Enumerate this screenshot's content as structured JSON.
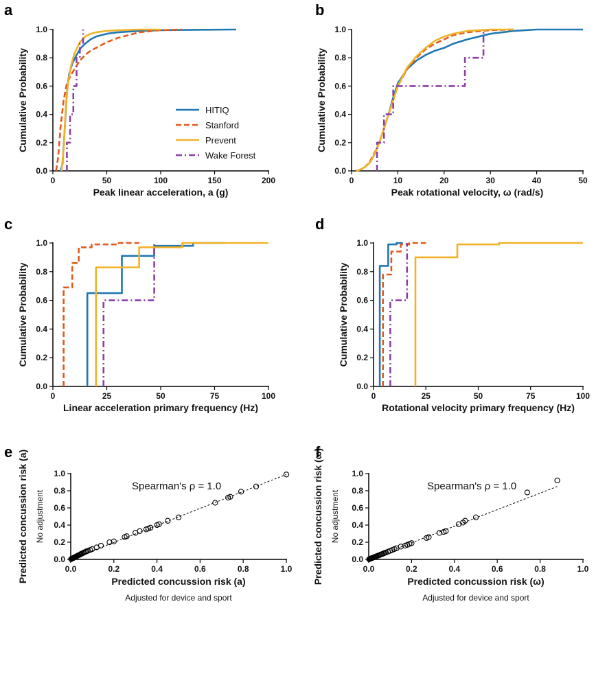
{
  "colors": {
    "HITIQ": "#1f77b4",
    "Stanford": "#e05a1c",
    "Prevent": "#f2b227",
    "Wake Forest": "#8b3fa6",
    "axis": "#000000",
    "marker": "#000000"
  },
  "legend": {
    "position": "center-right of panel a",
    "entries": [
      "HITIQ",
      "Stanford",
      "Prevent",
      "Wake Forest"
    ]
  },
  "chart_data": [
    {
      "panel": "a",
      "type": "line",
      "xlabel": "Peak linear acceleration, a (g)",
      "ylabel": "Cumulative Probability",
      "xlim": [
        0,
        200
      ],
      "ylim": [
        0,
        1
      ],
      "xticks": [
        "0",
        "50",
        "100",
        "150",
        "200"
      ],
      "yticks": [
        "0.0",
        "0.2",
        "0.4",
        "0.6",
        "0.8",
        "1.0"
      ],
      "series": [
        {
          "name": "HITIQ",
          "style": "solid",
          "x": [
            7,
            9,
            11,
            13,
            15,
            18,
            22,
            26,
            30,
            35,
            40,
            50,
            60,
            80,
            100,
            130,
            170
          ],
          "y": [
            0,
            0.05,
            0.3,
            0.55,
            0.68,
            0.76,
            0.82,
            0.87,
            0.9,
            0.93,
            0.95,
            0.97,
            0.98,
            0.99,
            0.995,
            0.998,
            1.0
          ]
        },
        {
          "name": "Stanford",
          "style": "dashed",
          "x": [
            3,
            5,
            7,
            10,
            13,
            17,
            20,
            25,
            30,
            35,
            40,
            50,
            60,
            70,
            80,
            100,
            120
          ],
          "y": [
            0,
            0.1,
            0.3,
            0.5,
            0.62,
            0.68,
            0.72,
            0.78,
            0.82,
            0.85,
            0.87,
            0.91,
            0.94,
            0.96,
            0.98,
            0.995,
            1.0
          ]
        },
        {
          "name": "Prevent",
          "style": "solid",
          "x": [
            8,
            10,
            12,
            14,
            17,
            20,
            25,
            30,
            35,
            40,
            50,
            60,
            80,
            100
          ],
          "y": [
            0,
            0.15,
            0.45,
            0.62,
            0.75,
            0.83,
            0.91,
            0.95,
            0.97,
            0.98,
            0.99,
            0.995,
            1.0,
            1.0
          ]
        },
        {
          "name": "Wake Forest",
          "style": "dashdot",
          "x": [
            13,
            13,
            16,
            16,
            19,
            19,
            22,
            22,
            25,
            25,
            28,
            28
          ],
          "y": [
            0,
            0.2,
            0.2,
            0.4,
            0.4,
            0.6,
            0.6,
            0.8,
            0.8,
            0.9,
            0.9,
            1.0
          ]
        }
      ]
    },
    {
      "panel": "b",
      "type": "line",
      "xlabel": "Peak rotational velocity, ω (rad/s)",
      "ylabel": "Cumulative Probability",
      "xlim": [
        0,
        50
      ],
      "ylim": [
        0,
        1
      ],
      "xticks": [
        "0",
        "10",
        "20",
        "30",
        "40",
        "50"
      ],
      "yticks": [
        "0.0",
        "0.2",
        "0.4",
        "0.6",
        "0.8",
        "1.0"
      ],
      "series": [
        {
          "name": "HITIQ",
          "style": "solid",
          "x": [
            1,
            2,
            3,
            4,
            5,
            6,
            7,
            8,
            9,
            10,
            12,
            14,
            16,
            18,
            20,
            22,
            25,
            30,
            35,
            40,
            50
          ],
          "y": [
            0,
            0.01,
            0.03,
            0.06,
            0.12,
            0.2,
            0.3,
            0.4,
            0.52,
            0.62,
            0.72,
            0.78,
            0.82,
            0.85,
            0.87,
            0.9,
            0.93,
            0.97,
            0.99,
            1.0,
            1.0
          ]
        },
        {
          "name": "Stanford",
          "style": "dashed",
          "x": [
            1,
            2,
            3,
            4,
            5,
            6,
            7,
            8,
            9,
            10,
            12,
            14,
            16,
            18,
            20,
            22,
            25,
            30,
            35
          ],
          "y": [
            0,
            0.01,
            0.03,
            0.07,
            0.13,
            0.2,
            0.3,
            0.4,
            0.5,
            0.6,
            0.72,
            0.8,
            0.86,
            0.9,
            0.93,
            0.96,
            0.98,
            0.995,
            1.0
          ]
        },
        {
          "name": "Prevent",
          "style": "solid",
          "x": [
            1,
            2,
            3,
            4,
            5,
            6,
            7,
            8,
            9,
            10,
            12,
            14,
            16,
            18,
            20,
            22,
            25,
            30,
            35
          ],
          "y": [
            0,
            0.01,
            0.03,
            0.06,
            0.12,
            0.2,
            0.3,
            0.4,
            0.5,
            0.6,
            0.73,
            0.81,
            0.87,
            0.92,
            0.95,
            0.97,
            0.99,
            1.0,
            1.0
          ]
        },
        {
          "name": "Wake Forest",
          "style": "dashdot",
          "x": [
            5.5,
            5.5,
            7,
            7,
            9,
            9,
            24.5,
            24.5,
            28.5,
            28.5
          ],
          "y": [
            0,
            0.2,
            0.2,
            0.4,
            0.4,
            0.6,
            0.6,
            0.8,
            0.8,
            1.0
          ]
        }
      ]
    },
    {
      "panel": "c",
      "type": "line",
      "xlabel": "Linear acceleration primary frequency (Hz)",
      "ylabel": "Cumulative Probability",
      "xlim": [
        0,
        100
      ],
      "ylim": [
        0,
        1
      ],
      "xticks": [
        "0",
        "25",
        "50",
        "75",
        "100"
      ],
      "yticks": [
        "0.0",
        "0.2",
        "0.4",
        "0.6",
        "0.8",
        "1.0"
      ],
      "series": [
        {
          "name": "HITIQ",
          "style": "solid",
          "x": [
            16,
            16,
            32,
            32,
            47,
            47,
            65,
            65,
            80
          ],
          "y": [
            0,
            0.65,
            0.65,
            0.91,
            0.91,
            0.98,
            0.98,
            1.0,
            1.0
          ]
        },
        {
          "name": "Stanford",
          "style": "dashed",
          "x": [
            5,
            5,
            9,
            9,
            12,
            12,
            18,
            18,
            30,
            30,
            40
          ],
          "y": [
            0,
            0.69,
            0.69,
            0.86,
            0.86,
            0.97,
            0.97,
            0.99,
            0.99,
            1.0,
            1.0
          ]
        },
        {
          "name": "Prevent",
          "style": "solid",
          "x": [
            20,
            20,
            40,
            40,
            60,
            60,
            100
          ],
          "y": [
            0,
            0.83,
            0.83,
            0.97,
            0.97,
            1.0,
            1.0
          ]
        },
        {
          "name": "Wake Forest",
          "style": "dashdot",
          "x": [
            23.5,
            23.5,
            47,
            47
          ],
          "y": [
            0,
            0.6,
            0.6,
            1.0
          ]
        }
      ]
    },
    {
      "panel": "d",
      "type": "line",
      "xlabel": "Rotational velocity primary frequency (Hz)",
      "ylabel": "Cumulative Probability",
      "xlim": [
        0,
        100
      ],
      "ylim": [
        0,
        1
      ],
      "xticks": [
        "0",
        "25",
        "50",
        "75",
        "100"
      ],
      "yticks": [
        "0.0",
        "0.2",
        "0.4",
        "0.6",
        "0.8",
        "1.0"
      ],
      "series": [
        {
          "name": "HITIQ",
          "style": "solid",
          "x": [
            3,
            3,
            7,
            7,
            11,
            11,
            14
          ],
          "y": [
            0,
            0.84,
            0.84,
            0.99,
            0.99,
            1.0,
            1.0
          ]
        },
        {
          "name": "Stanford",
          "style": "dashed",
          "x": [
            4.5,
            4.5,
            8.5,
            8.5,
            13,
            13,
            17,
            17,
            26
          ],
          "y": [
            0,
            0.78,
            0.78,
            0.94,
            0.94,
            0.99,
            0.99,
            1.0,
            1.0
          ]
        },
        {
          "name": "Prevent",
          "style": "solid",
          "x": [
            20,
            20,
            40,
            40,
            60,
            60,
            100
          ],
          "y": [
            0,
            0.9,
            0.9,
            0.99,
            0.99,
            1.0,
            1.0
          ]
        },
        {
          "name": "Wake Forest",
          "style": "dashdot",
          "x": [
            8,
            8,
            16,
            16
          ],
          "y": [
            0,
            0.6,
            0.6,
            1.0
          ]
        }
      ]
    },
    {
      "panel": "e",
      "type": "scatter",
      "xlabel": "Predicted concussion risk (a)",
      "xsublabel": "Adjusted for device and sport",
      "ylabel": "Predicted concussion risk (a)",
      "ysublabel": "No adjustment",
      "xlim": [
        0,
        1
      ],
      "ylim": [
        0,
        1
      ],
      "xticks": [
        "0.0",
        "0.2",
        "0.4",
        "0.6",
        "0.8",
        "1.0"
      ],
      "yticks": [
        "0.0",
        "0.2",
        "0.4",
        "0.6",
        "0.8",
        "1.0"
      ],
      "annotation": "Spearman's ρ = 1.0",
      "fit_line": {
        "x": [
          0,
          1
        ],
        "y": [
          0,
          0.99
        ]
      },
      "x": [
        0.002,
        0.005,
        0.008,
        0.01,
        0.012,
        0.015,
        0.018,
        0.02,
        0.022,
        0.025,
        0.028,
        0.03,
        0.033,
        0.036,
        0.04,
        0.043,
        0.046,
        0.05,
        0.055,
        0.06,
        0.065,
        0.07,
        0.075,
        0.08,
        0.09,
        0.1,
        0.12,
        0.14,
        0.18,
        0.2,
        0.25,
        0.26,
        0.3,
        0.32,
        0.35,
        0.36,
        0.37,
        0.4,
        0.41,
        0.45,
        0.5,
        0.67,
        0.73,
        0.74,
        0.79,
        0.86,
        1.0
      ],
      "y": [
        0.003,
        0.007,
        0.011,
        0.013,
        0.016,
        0.02,
        0.024,
        0.027,
        0.03,
        0.034,
        0.037,
        0.04,
        0.044,
        0.048,
        0.053,
        0.057,
        0.061,
        0.066,
        0.072,
        0.078,
        0.084,
        0.09,
        0.096,
        0.1,
        0.11,
        0.12,
        0.14,
        0.16,
        0.2,
        0.21,
        0.26,
        0.27,
        0.31,
        0.33,
        0.35,
        0.36,
        0.37,
        0.4,
        0.41,
        0.45,
        0.49,
        0.66,
        0.72,
        0.73,
        0.79,
        0.85,
        0.99
      ]
    },
    {
      "panel": "f",
      "type": "scatter",
      "xlabel": "Predicted concussion risk (ω)",
      "xsublabel": "Adjusted for device and sport",
      "ylabel": "Predicted concussion risk (ω)",
      "ysublabel": "No adjustment",
      "xlim": [
        0,
        1
      ],
      "ylim": [
        0,
        1
      ],
      "xticks": [
        "0.0",
        "0.2",
        "0.4",
        "0.6",
        "0.8",
        "1.0"
      ],
      "yticks": [
        "0.0",
        "0.2",
        "0.4",
        "0.6",
        "0.8",
        "1.0"
      ],
      "annotation": "Spearman's ρ = 1.0",
      "fit_line": {
        "x": [
          0,
          0.88
        ],
        "y": [
          0,
          0.85
        ]
      },
      "x": [
        0.002,
        0.005,
        0.008,
        0.01,
        0.013,
        0.016,
        0.02,
        0.023,
        0.026,
        0.03,
        0.033,
        0.036,
        0.04,
        0.045,
        0.05,
        0.055,
        0.06,
        0.065,
        0.07,
        0.075,
        0.08,
        0.09,
        0.1,
        0.11,
        0.12,
        0.13,
        0.15,
        0.17,
        0.18,
        0.19,
        0.2,
        0.27,
        0.28,
        0.33,
        0.35,
        0.36,
        0.42,
        0.44,
        0.45,
        0.5,
        0.74,
        0.88
      ],
      "y": [
        0.002,
        0.005,
        0.008,
        0.01,
        0.013,
        0.016,
        0.02,
        0.023,
        0.026,
        0.03,
        0.033,
        0.036,
        0.04,
        0.045,
        0.05,
        0.055,
        0.06,
        0.065,
        0.07,
        0.075,
        0.08,
        0.09,
        0.1,
        0.11,
        0.12,
        0.13,
        0.15,
        0.16,
        0.17,
        0.18,
        0.19,
        0.25,
        0.26,
        0.31,
        0.32,
        0.33,
        0.41,
        0.43,
        0.45,
        0.49,
        0.78,
        0.92
      ]
    }
  ]
}
